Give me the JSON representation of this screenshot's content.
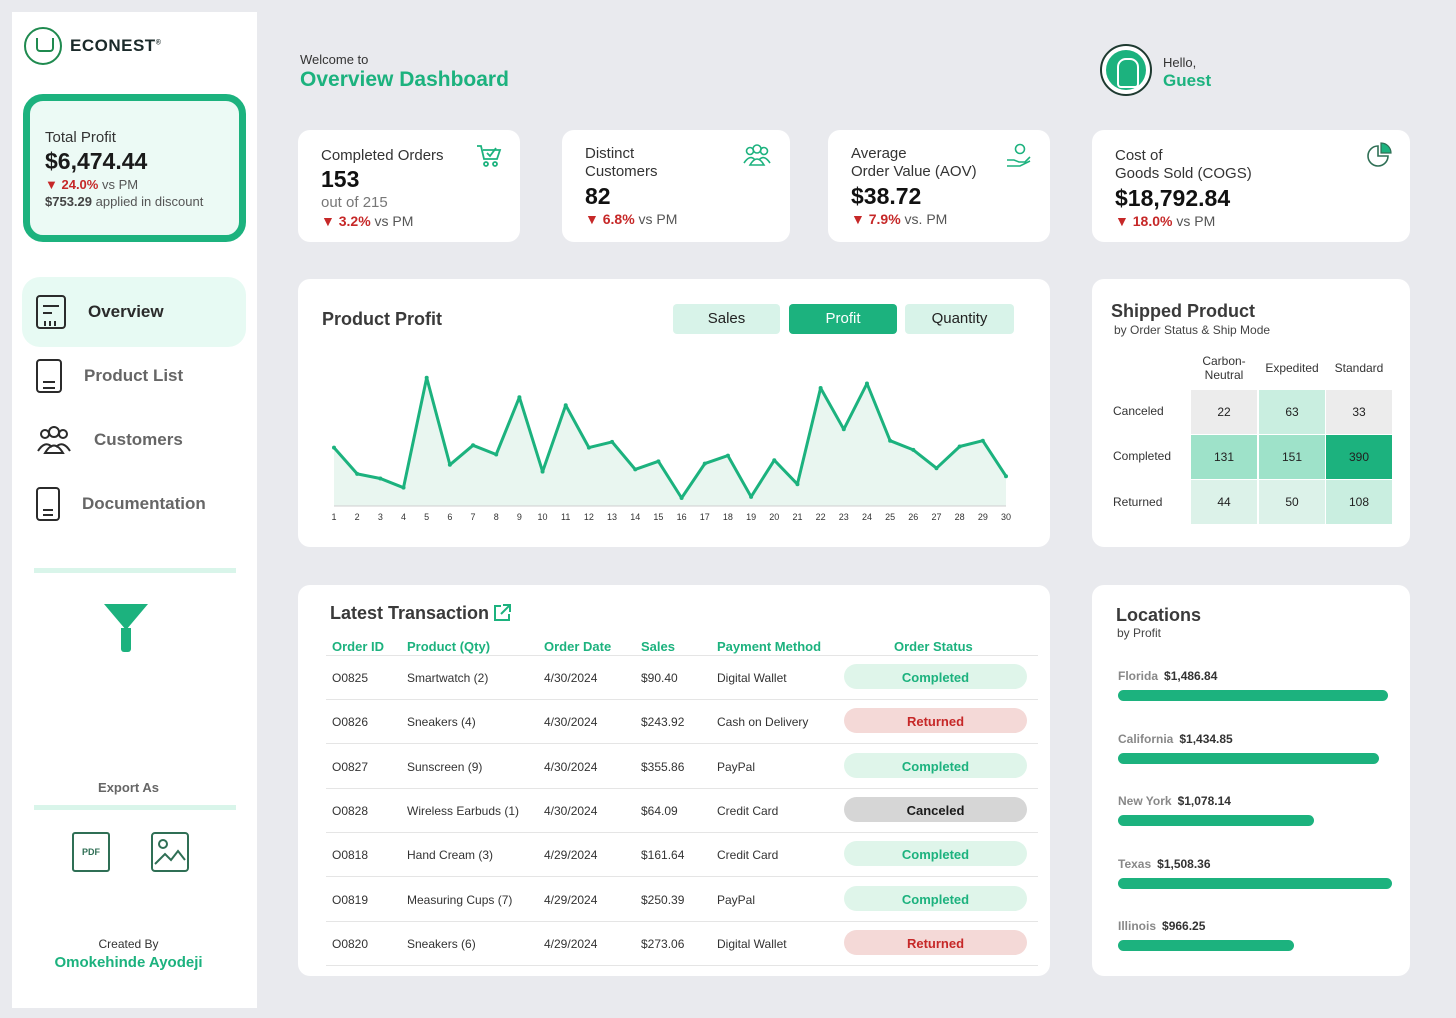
{
  "brand": {
    "name": "ECONEST"
  },
  "sidebar": {
    "total_profit": {
      "label": "Total Profit",
      "value": "$6,474.44",
      "delta": "▼ 24.0%",
      "delta_suffix": " vs PM",
      "discount_value": "$753.29",
      "discount_suffix": " applied in discount"
    },
    "nav": [
      {
        "label": "Overview",
        "icon": "overview-report-icon"
      },
      {
        "label": "Product List",
        "icon": "clipboard-check-icon"
      },
      {
        "label": "Customers",
        "icon": "users-icon"
      },
      {
        "label": "Documentation",
        "icon": "ref-document-icon"
      }
    ],
    "export_label": "Export As",
    "export_pdf_text": "PDF",
    "created_by_label": "Created By",
    "author": "Omokehinde Ayodeji"
  },
  "header": {
    "welcome": "Welcome to",
    "title": "Overview Dashboard",
    "hello": "Hello,",
    "user": "Guest"
  },
  "kpis": [
    {
      "label": "Completed Orders",
      "value": "153",
      "sub": "out of 215",
      "delta": "▼ 3.2%",
      "suffix": " vs PM",
      "icon": "cart-check-icon"
    },
    {
      "label": "Distinct\nCustomers",
      "value": "82",
      "sub": "",
      "delta": "▼ 6.8%",
      "suffix": " vs PM",
      "icon": "group-icon"
    },
    {
      "label": "Average\nOrder Value (AOV)",
      "value": "$38.72",
      "sub": "",
      "delta": "▼ 7.9%",
      "suffix": " vs. PM",
      "icon": "hand-coin-icon"
    },
    {
      "label": "Cost of\nGoods Sold (COGS)",
      "value": "$18,792.84",
      "sub": "",
      "delta": "▼ 18.0%",
      "suffix": " vs PM",
      "icon": "pie-chart-icon"
    }
  ],
  "product_profit": {
    "title": "Product Profit",
    "toggles": [
      "Sales",
      "Profit",
      "Quantity"
    ],
    "active_toggle": "Profit"
  },
  "chart_data": {
    "type": "area",
    "title": "Product Profit",
    "x": [
      1,
      2,
      3,
      4,
      5,
      6,
      7,
      8,
      9,
      10,
      11,
      12,
      13,
      14,
      15,
      16,
      17,
      18,
      19,
      20,
      21,
      22,
      23,
      24,
      25,
      26,
      27,
      28,
      29,
      30
    ],
    "values": [
      255,
      140,
      120,
      80,
      560,
      180,
      265,
      225,
      475,
      150,
      440,
      255,
      280,
      160,
      195,
      35,
      185,
      220,
      40,
      200,
      95,
      515,
      335,
      535,
      285,
      245,
      165,
      260,
      285,
      130
    ],
    "ylim": [
      0,
      620
    ],
    "xlabel": "",
    "ylabel": "",
    "grid": false
  },
  "shipped": {
    "title": "Shipped Product",
    "subtitle": "by Order Status & Ship Mode",
    "columns": [
      "Carbon-\nNeutral",
      "Expedited",
      "Standard"
    ],
    "rows": [
      {
        "label": "Canceled",
        "values": [
          22,
          63,
          33
        ]
      },
      {
        "label": "Completed",
        "values": [
          131,
          151,
          390
        ]
      },
      {
        "label": "Returned",
        "values": [
          44,
          50,
          108
        ]
      }
    ],
    "max": 390
  },
  "transactions": {
    "title": "Latest Transaction",
    "headers": [
      "Order ID",
      "Product (Qty)",
      "Order Date",
      "Sales",
      "Payment Method",
      "Order Status"
    ],
    "rows": [
      {
        "id": "O0825",
        "product": "Smartwatch (2)",
        "date": "4/30/2024",
        "sales": "$90.40",
        "payment": "Digital Wallet",
        "status": "Completed"
      },
      {
        "id": "O0826",
        "product": "Sneakers (4)",
        "date": "4/30/2024",
        "sales": "$243.92",
        "payment": "Cash on Delivery",
        "status": "Returned"
      },
      {
        "id": "O0827",
        "product": "Sunscreen (9)",
        "date": "4/30/2024",
        "sales": "$355.86",
        "payment": "PayPal",
        "status": "Completed"
      },
      {
        "id": "O0828",
        "product": "Wireless Earbuds (1)",
        "date": "4/30/2024",
        "sales": "$64.09",
        "payment": "Credit Card",
        "status": "Canceled"
      },
      {
        "id": "O0818",
        "product": "Hand Cream (3)",
        "date": "4/29/2024",
        "sales": "$161.64",
        "payment": "Credit Card",
        "status": "Completed"
      },
      {
        "id": "O0819",
        "product": "Measuring Cups (7)",
        "date": "4/29/2024",
        "sales": "$250.39",
        "payment": "PayPal",
        "status": "Completed"
      },
      {
        "id": "O0820",
        "product": "Sneakers (6)",
        "date": "4/29/2024",
        "sales": "$273.06",
        "payment": "Digital Wallet",
        "status": "Returned"
      }
    ]
  },
  "locations": {
    "title": "Locations",
    "subtitle": "by Profit",
    "items": [
      {
        "state": "Florida",
        "value": "$1,486.84",
        "amount": 1486.84
      },
      {
        "state": "California",
        "value": "$1,434.85",
        "amount": 1434.85
      },
      {
        "state": "New York",
        "value": "$1,078.14",
        "amount": 1078.14
      },
      {
        "state": "Texas",
        "value": "$1,508.36",
        "amount": 1508.36
      },
      {
        "state": "Illinois",
        "value": "$966.25",
        "amount": 966.25
      }
    ]
  },
  "colors": {
    "accent": "#1cb27e",
    "negative": "#c62828",
    "page_bg": "#e9eaee"
  }
}
